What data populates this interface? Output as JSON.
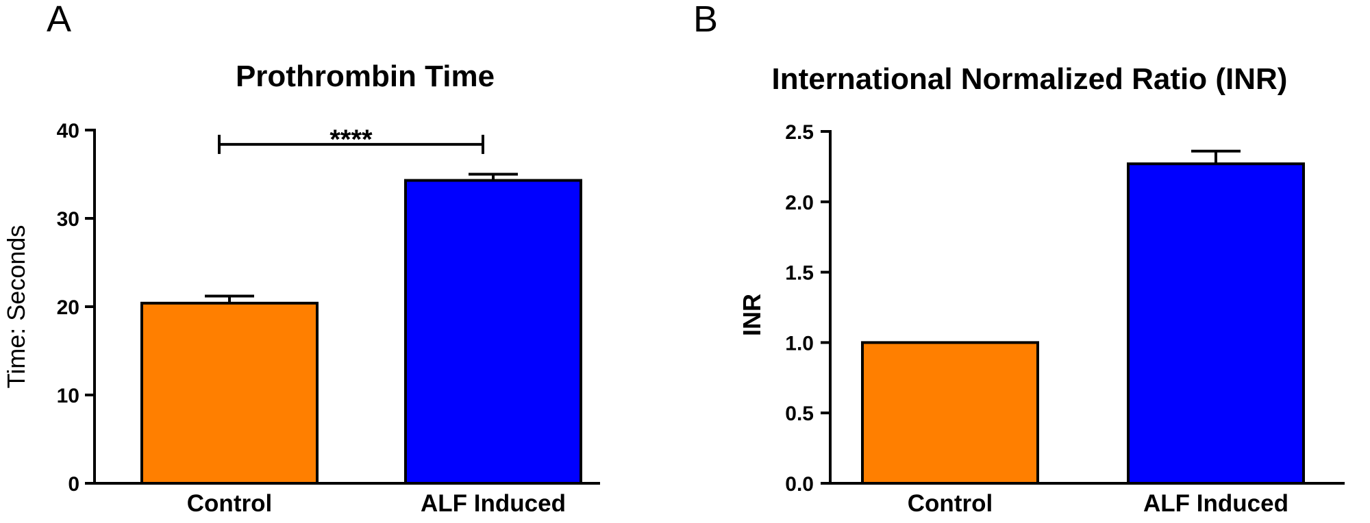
{
  "chart_data": [
    {
      "panel": "A",
      "type": "bar",
      "title": "Prothrombin Time",
      "xlabel": "",
      "ylabel": "Time: Seconds",
      "categories": [
        "Control",
        "ALF Induced"
      ],
      "values": [
        20.4,
        34.3
      ],
      "errors": [
        0.8,
        0.7
      ],
      "colors": [
        "#FF7F00",
        "#0000FF"
      ],
      "ylim": [
        0,
        40
      ],
      "yticks": [
        0,
        10,
        20,
        30,
        40
      ],
      "ytick_labels": [
        "0",
        "10",
        "20",
        "30",
        "40"
      ],
      "grid": false,
      "significance": {
        "between": [
          "Control",
          "ALF Induced"
        ],
        "label": "****",
        "y": 39
      }
    },
    {
      "panel": "B",
      "type": "bar",
      "title": "International Normalized Ratio (INR)",
      "xlabel": "",
      "ylabel": "INR",
      "categories": [
        "Control",
        "ALF Induced"
      ],
      "values": [
        1.0,
        2.27
      ],
      "errors": [
        0,
        0.09
      ],
      "colors": [
        "#FF7F00",
        "#0000FF"
      ],
      "ylim": [
        0,
        2.5
      ],
      "yticks": [
        0,
        0.5,
        1.0,
        1.5,
        2.0,
        2.5
      ],
      "ytick_labels": [
        "0.0",
        "0.5",
        "1.0",
        "1.5",
        "2.0",
        "2.5"
      ],
      "grid": false
    }
  ]
}
